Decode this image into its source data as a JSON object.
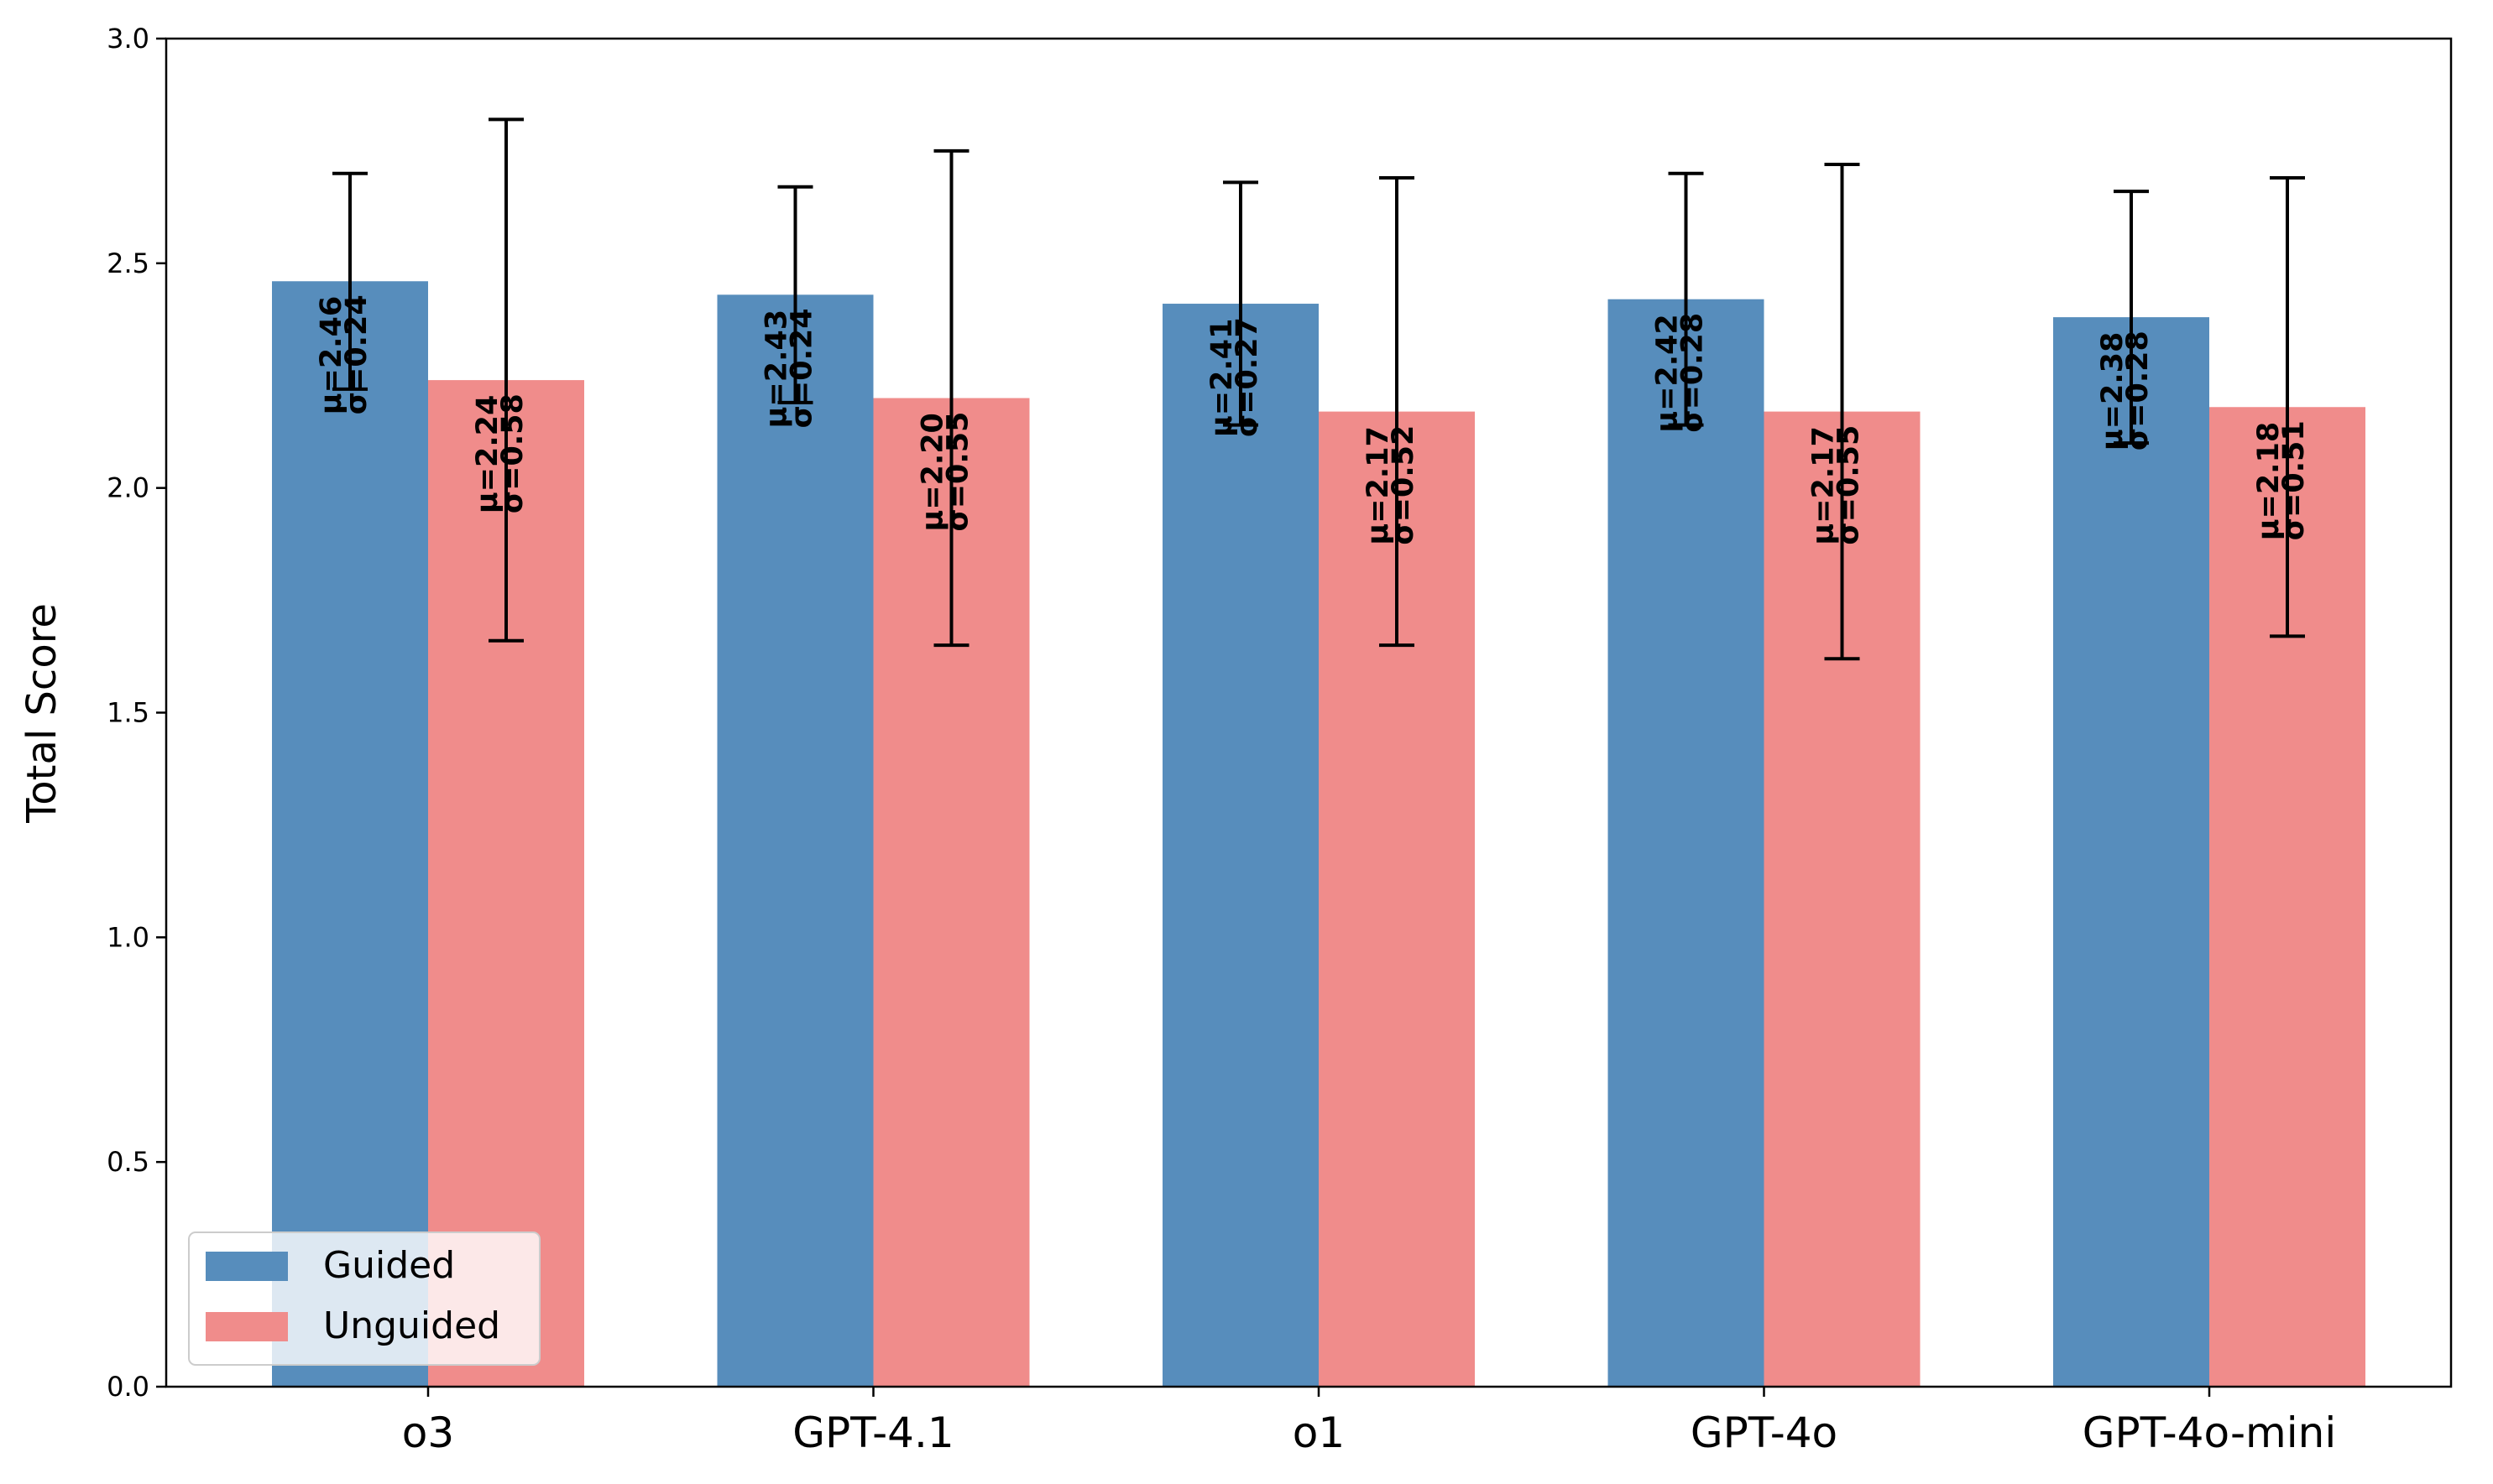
{
  "chart_data": {
    "type": "bar",
    "title": "",
    "xlabel": "",
    "ylabel": "Total Score",
    "ylim": [
      0,
      3.0
    ],
    "yticks": [
      "0.0",
      "0.5",
      "1.0",
      "1.5",
      "2.0",
      "2.5",
      "3.0"
    ],
    "grid": false,
    "legend_position": "lower-left",
    "categories": [
      "o3",
      "GPT-4.1",
      "o1",
      "GPT-4o",
      "GPT-4o-mini"
    ],
    "series": [
      {
        "name": "Guided",
        "color": "#578dbc",
        "values": [
          2.46,
          2.43,
          2.41,
          2.42,
          2.38
        ],
        "errors": [
          0.24,
          0.24,
          0.27,
          0.28,
          0.28
        ],
        "labels": [
          [
            "μ=2.46",
            "σ=0.24"
          ],
          [
            "μ=2.43",
            "σ=0.24"
          ],
          [
            "μ=2.41",
            "σ=0.27"
          ],
          [
            "μ=2.42",
            "σ=0.28"
          ],
          [
            "μ=2.38",
            "σ=0.28"
          ]
        ]
      },
      {
        "name": "Unguided",
        "color": "#f08c8b",
        "values": [
          2.24,
          2.2,
          2.17,
          2.17,
          2.18
        ],
        "errors": [
          0.58,
          0.55,
          0.52,
          0.55,
          0.51
        ],
        "labels": [
          [
            "μ=2.24",
            "σ=0.58"
          ],
          [
            "μ=2.20",
            "σ=0.55"
          ],
          [
            "μ=2.17",
            "σ=0.52"
          ],
          [
            "μ=2.17",
            "σ=0.55"
          ],
          [
            "μ=2.18",
            "σ=0.51"
          ]
        ]
      }
    ]
  }
}
